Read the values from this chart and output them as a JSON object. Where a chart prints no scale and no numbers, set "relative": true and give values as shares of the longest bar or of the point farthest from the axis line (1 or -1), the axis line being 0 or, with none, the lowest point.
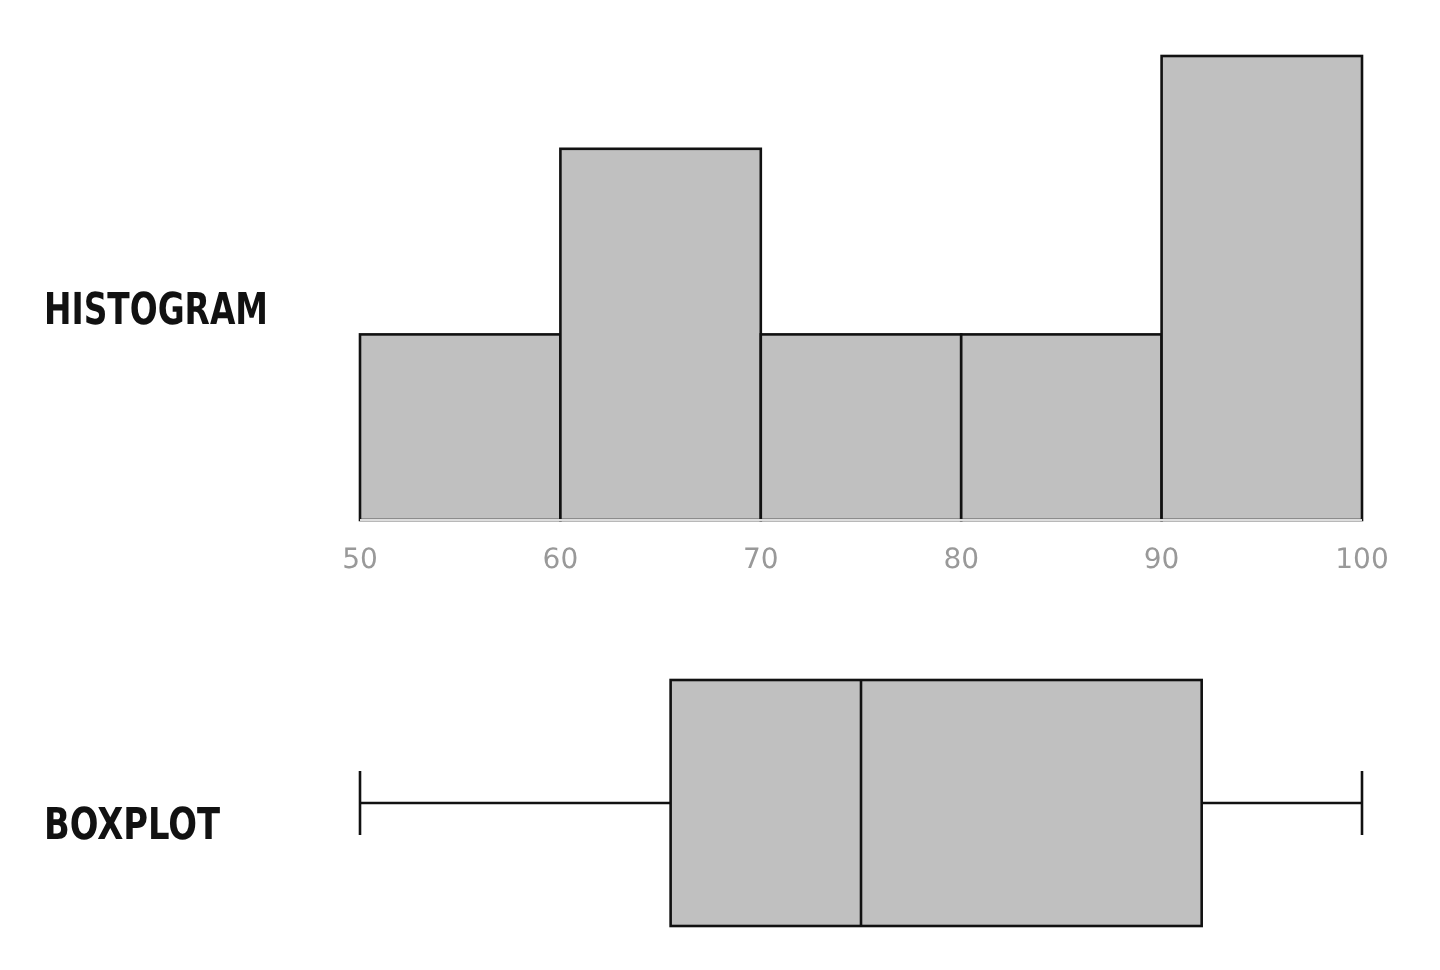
{
  "chart_data": [
    {
      "type": "bar",
      "title": "HISTOGRAM",
      "x": [
        55,
        65,
        75,
        85,
        95
      ],
      "values": [
        0.4,
        0.8,
        0.4,
        0.4,
        1
      ],
      "relative": true,
      "xlim": [
        50,
        100
      ],
      "xticks": [
        50,
        60,
        70,
        80,
        90,
        100
      ],
      "color": "#c0c0c0"
    },
    {
      "type": "box",
      "title": "BOXPLOT",
      "categories": [
        null
      ],
      "orientation": "horizontal",
      "boxes": [
        {
          "low": 50,
          "q1": 65.5,
          "median": 75,
          "q3": 92,
          "high": 100
        }
      ],
      "xlim": [
        50,
        100
      ],
      "tick_labels": false,
      "color": "#c0c0c0"
    }
  ]
}
